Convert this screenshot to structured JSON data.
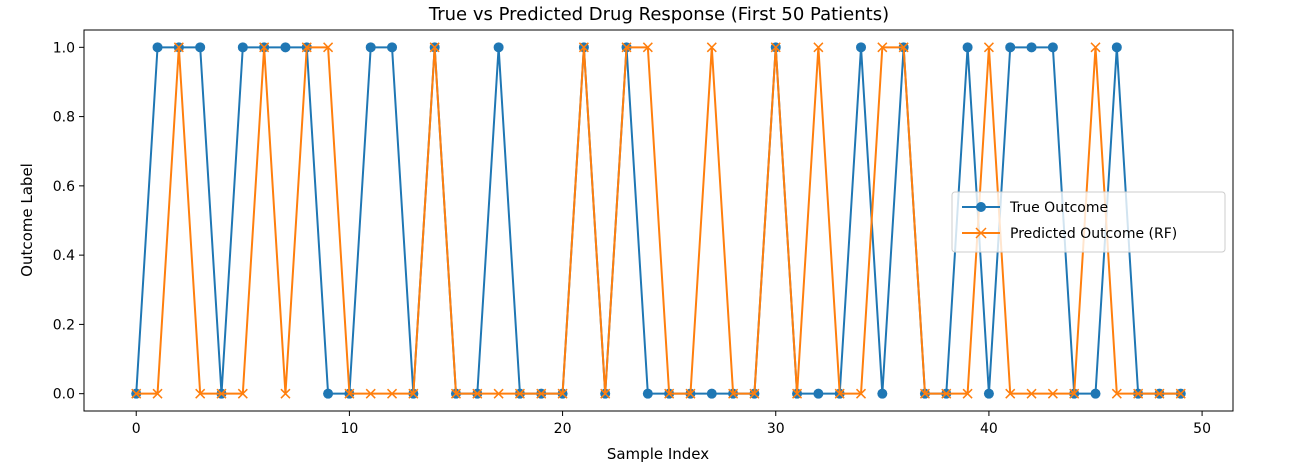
{
  "chart_data": {
    "type": "line",
    "title": "True vs Predicted Drug Response (First 50 Patients)",
    "xlabel": "Sample Index",
    "ylabel": "Outcome Label",
    "xlim": [
      -2.45,
      51.45
    ],
    "ylim": [
      -0.05,
      1.05
    ],
    "xticks": [
      0,
      10,
      20,
      30,
      40,
      50
    ],
    "yticks": [
      0.0,
      0.2,
      0.4,
      0.6,
      0.8,
      1.0
    ],
    "xtick_labels": [
      "0",
      "10",
      "20",
      "30",
      "40",
      "50"
    ],
    "ytick_labels": [
      "0.0",
      "0.2",
      "0.4",
      "0.6",
      "0.8",
      "1.0"
    ],
    "grid": false,
    "legend_position": "center-right",
    "x": [
      0,
      1,
      2,
      3,
      4,
      5,
      6,
      7,
      8,
      9,
      10,
      11,
      12,
      13,
      14,
      15,
      16,
      17,
      18,
      19,
      20,
      21,
      22,
      23,
      24,
      25,
      26,
      27,
      28,
      29,
      30,
      31,
      32,
      33,
      34,
      35,
      36,
      37,
      38,
      39,
      40,
      41,
      42,
      43,
      44,
      45,
      46,
      47,
      48,
      49
    ],
    "series": [
      {
        "name": "True Outcome",
        "color": "#1f77b4",
        "marker": "circle",
        "values": [
          0,
          1,
          1,
          1,
          0,
          1,
          1,
          1,
          1,
          0,
          0,
          1,
          1,
          0,
          1,
          0,
          0,
          1,
          0,
          0,
          0,
          1,
          0,
          1,
          0,
          0,
          0,
          0,
          0,
          0,
          1,
          0,
          0,
          0,
          1,
          0,
          1,
          0,
          0,
          1,
          0,
          1,
          1,
          1,
          0,
          0,
          1,
          0,
          0,
          0
        ]
      },
      {
        "name": "Predicted Outcome (RF)",
        "color": "#ff7f0e",
        "marker": "x",
        "values": [
          0,
          0,
          1,
          0,
          0,
          0,
          1,
          0,
          1,
          1,
          0,
          0,
          0,
          0,
          1,
          0,
          0,
          0,
          0,
          0,
          0,
          1,
          0,
          1,
          1,
          0,
          0,
          1,
          0,
          0,
          1,
          0,
          1,
          0,
          0,
          1,
          1,
          0,
          0,
          0,
          1,
          0,
          0,
          0,
          0,
          1,
          0,
          0,
          0,
          0
        ]
      }
    ]
  }
}
